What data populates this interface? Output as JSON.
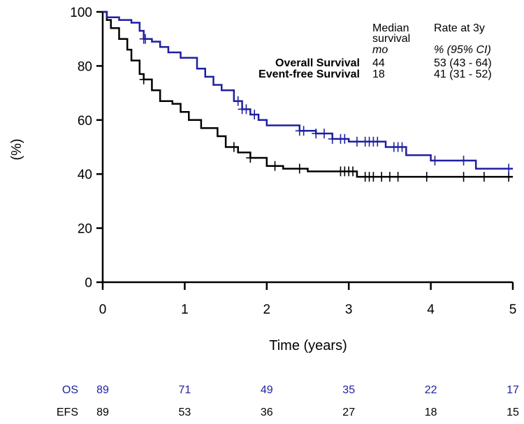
{
  "chart_data": {
    "type": "line",
    "subtype": "kaplan-meier",
    "xlabel": "Time (years)",
    "ylabel": "(%)",
    "xlim": [
      0,
      5
    ],
    "ylim": [
      0,
      100
    ],
    "xticks": [
      "0",
      "1",
      "2",
      "3",
      "4",
      "5"
    ],
    "yticks": [
      "0",
      "20",
      "40",
      "60",
      "80",
      "100"
    ],
    "legend": {
      "col1_header_line1": "Median",
      "col1_header_line2": "survival",
      "col1_unit": "mo",
      "col2_header": "Rate at 3y",
      "col2_unit": "% (95% CI)",
      "rows": [
        {
          "name": "Overall Survival",
          "median": "44",
          "rate": "53 (43 - 64)"
        },
        {
          "name": "Event-free Survival",
          "median": "18",
          "rate": "41 (31 - 52)"
        }
      ]
    },
    "series": [
      {
        "name": "OS",
        "color": "#1f1fa0",
        "steps": [
          [
            0,
            100
          ],
          [
            0.05,
            98
          ],
          [
            0.2,
            97
          ],
          [
            0.35,
            96
          ],
          [
            0.45,
            93
          ],
          [
            0.5,
            90
          ],
          [
            0.6,
            89
          ],
          [
            0.7,
            87
          ],
          [
            0.8,
            85
          ],
          [
            0.95,
            83
          ],
          [
            1.15,
            79
          ],
          [
            1.25,
            76
          ],
          [
            1.35,
            73
          ],
          [
            1.45,
            71
          ],
          [
            1.6,
            67
          ],
          [
            1.7,
            64
          ],
          [
            1.8,
            62
          ],
          [
            1.9,
            60
          ],
          [
            2.0,
            58
          ],
          [
            2.4,
            56
          ],
          [
            2.6,
            55
          ],
          [
            2.8,
            53
          ],
          [
            3.0,
            52
          ],
          [
            3.45,
            50
          ],
          [
            3.6,
            50
          ],
          [
            3.7,
            47
          ],
          [
            3.95,
            47
          ],
          [
            4.0,
            45
          ],
          [
            4.5,
            45
          ],
          [
            4.55,
            42
          ],
          [
            5.0,
            42
          ]
        ],
        "censor_times": [
          0.5,
          0.52,
          1.65,
          1.7,
          1.75,
          1.85,
          2.4,
          2.45,
          2.6,
          2.7,
          2.8,
          2.9,
          2.95,
          3.1,
          3.2,
          3.25,
          3.3,
          3.35,
          3.55,
          3.6,
          3.65,
          4.05,
          4.4,
          4.95
        ]
      },
      {
        "name": "EFS",
        "color": "#000000",
        "steps": [
          [
            0,
            100
          ],
          [
            0.05,
            97
          ],
          [
            0.1,
            94
          ],
          [
            0.2,
            90
          ],
          [
            0.3,
            86
          ],
          [
            0.35,
            82
          ],
          [
            0.45,
            77
          ],
          [
            0.5,
            75
          ],
          [
            0.6,
            71
          ],
          [
            0.7,
            67
          ],
          [
            0.85,
            66
          ],
          [
            0.95,
            63
          ],
          [
            1.05,
            60
          ],
          [
            1.2,
            57
          ],
          [
            1.4,
            54
          ],
          [
            1.5,
            50
          ],
          [
            1.65,
            48
          ],
          [
            1.8,
            46
          ],
          [
            2.0,
            43
          ],
          [
            2.2,
            42
          ],
          [
            2.5,
            41
          ],
          [
            3.1,
            39
          ],
          [
            5.0,
            39
          ]
        ],
        "censor_times": [
          0.5,
          1.6,
          1.8,
          2.1,
          2.4,
          2.9,
          2.95,
          3.0,
          3.05,
          3.2,
          3.25,
          3.3,
          3.4,
          3.5,
          3.6,
          3.95,
          4.4,
          4.65,
          4.95
        ]
      }
    ],
    "at_risk": {
      "times": [
        0,
        1,
        2,
        3,
        4,
        5
      ],
      "rows": [
        {
          "label": "OS",
          "color": "#1f1fa0",
          "values": [
            "89",
            "71",
            "49",
            "35",
            "22",
            "17"
          ]
        },
        {
          "label": "EFS",
          "color": "#000000",
          "values": [
            "89",
            "53",
            "36",
            "27",
            "18",
            "15"
          ]
        }
      ]
    }
  }
}
